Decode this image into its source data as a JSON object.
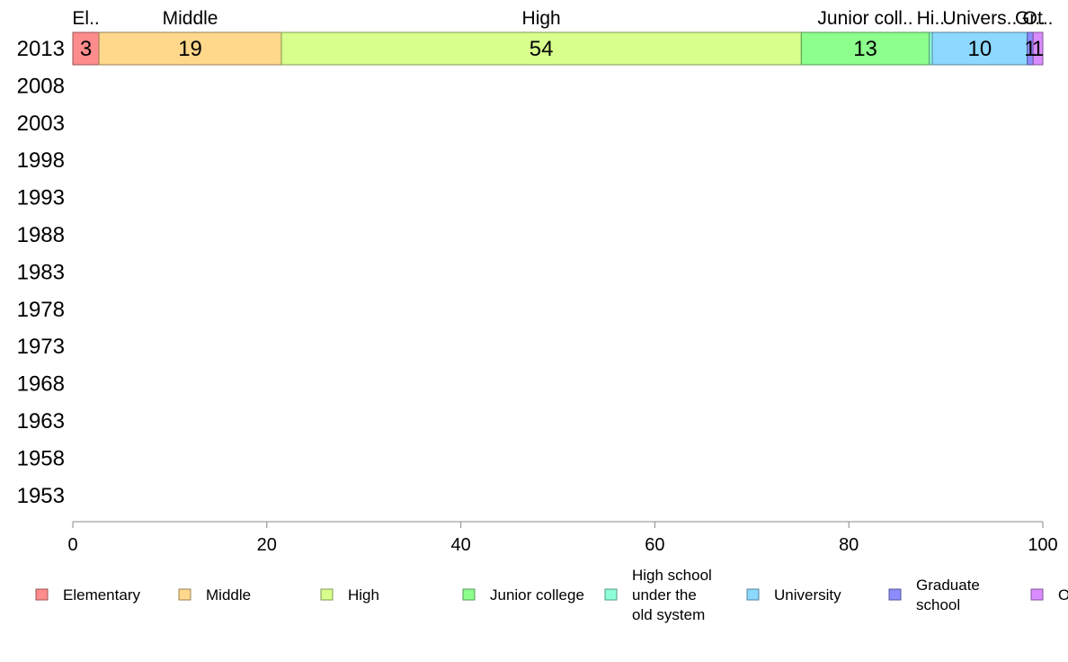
{
  "chart_data": {
    "type": "bar",
    "orientation": "horizontal",
    "stacked": true,
    "title": "",
    "xlabel": "",
    "ylabel": "",
    "xlim": [
      0,
      100
    ],
    "x_ticks": [
      "0",
      "20",
      "40",
      "60",
      "80",
      "100"
    ],
    "categories": [
      "2013",
      "2008",
      "2003",
      "1998",
      "1993",
      "1988",
      "1983",
      "1978",
      "1973",
      "1968",
      "1963",
      "1958",
      "1953"
    ],
    "grid": false,
    "legend_position": "bottom",
    "series": [
      {
        "name": "Elementary",
        "color": "#ff8c8c",
        "values": [
          2.7,
          null,
          null,
          null,
          null,
          null,
          null,
          null,
          null,
          null,
          null,
          null,
          null
        ]
      },
      {
        "name": "Middle",
        "color": "#ffd88c",
        "values": [
          18.8,
          null,
          null,
          null,
          null,
          null,
          null,
          null,
          null,
          null,
          null,
          null,
          null
        ]
      },
      {
        "name": "High",
        "color": "#d8ff8c",
        "values": [
          53.6,
          null,
          null,
          null,
          null,
          null,
          null,
          null,
          null,
          null,
          null,
          null,
          null
        ]
      },
      {
        "name": "Junior college",
        "color": "#8cff8c",
        "values": [
          13.2,
          null,
          null,
          null,
          null,
          null,
          null,
          null,
          null,
          null,
          null,
          null,
          null
        ]
      },
      {
        "name": "High school under the old system",
        "color": "#8cffd8",
        "values": [
          0.3,
          null,
          null,
          null,
          null,
          null,
          null,
          null,
          null,
          null,
          null,
          null,
          null
        ]
      },
      {
        "name": "University",
        "color": "#8cd8ff",
        "values": [
          9.8,
          null,
          null,
          null,
          null,
          null,
          null,
          null,
          null,
          null,
          null,
          null,
          null
        ]
      },
      {
        "name": "Graduate school",
        "color": "#8c8cff",
        "values": [
          0.6,
          null,
          null,
          null,
          null,
          null,
          null,
          null,
          null,
          null,
          null,
          null,
          null
        ]
      },
      {
        "name": "Others",
        "color": "#d88cff",
        "values": [
          1.0,
          null,
          null,
          null,
          null,
          null,
          null,
          null,
          null,
          null,
          null,
          null,
          null
        ]
      }
    ],
    "segment_labels_2013": [
      "3",
      "19",
      "54",
      "13",
      "",
      "10",
      "1",
      "1"
    ],
    "top_labels": [
      "El..",
      "Middle",
      "High",
      "Junior coll..",
      "Hi..",
      "Univers..",
      "Gr..",
      "Ot.."
    ],
    "legend_entries": [
      [
        "Elementary"
      ],
      [
        "Middle"
      ],
      [
        "High"
      ],
      [
        "Junior college"
      ],
      [
        "High school",
        "under the",
        "old system"
      ],
      [
        "University"
      ],
      [
        "Graduate",
        "school"
      ],
      [
        "O"
      ]
    ]
  }
}
